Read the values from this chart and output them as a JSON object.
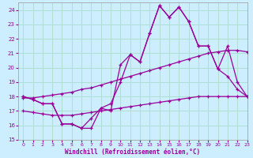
{
  "xlabel": "Windchill (Refroidissement éolien,°C)",
  "background_color": "#cceeff",
  "grid_color": "#aaddcc",
  "line_color": "#990099",
  "x_hours": [
    0,
    1,
    2,
    3,
    4,
    5,
    6,
    7,
    8,
    9,
    10,
    11,
    12,
    13,
    14,
    15,
    16,
    17,
    18,
    19,
    20,
    21,
    22,
    23
  ],
  "series_main": [
    18.0,
    17.8,
    17.5,
    17.5,
    16.1,
    16.1,
    15.8,
    15.8,
    17.2,
    17.0,
    20.2,
    20.9,
    20.4,
    22.4,
    24.3,
    23.5,
    24.2,
    23.2,
    21.5,
    21.5,
    19.9,
    19.4,
    18.5,
    18.0
  ],
  "series_line2": [
    18.0,
    17.8,
    17.5,
    17.5,
    16.1,
    16.1,
    15.8,
    16.5,
    17.2,
    17.5,
    19.0,
    20.9,
    20.4,
    22.4,
    24.3,
    23.5,
    24.2,
    23.2,
    21.5,
    21.5,
    19.9,
    21.5,
    19.0,
    18.0
  ],
  "series_avg_high": [
    17.9,
    17.9,
    18.0,
    18.1,
    18.2,
    18.3,
    18.5,
    18.6,
    18.8,
    19.0,
    19.2,
    19.4,
    19.6,
    19.8,
    20.0,
    20.2,
    20.4,
    20.6,
    20.8,
    21.0,
    21.1,
    21.2,
    21.2,
    21.1
  ],
  "series_avg_low": [
    17.0,
    16.9,
    16.8,
    16.7,
    16.7,
    16.7,
    16.8,
    16.9,
    17.0,
    17.1,
    17.2,
    17.3,
    17.4,
    17.5,
    17.6,
    17.7,
    17.8,
    17.9,
    18.0,
    18.0,
    18.0,
    18.0,
    18.0,
    18.0
  ],
  "ylim": [
    15,
    24.5
  ],
  "xlim": [
    -0.5,
    23
  ],
  "yticks": [
    15,
    16,
    17,
    18,
    19,
    20,
    21,
    22,
    23,
    24
  ],
  "xticks": [
    0,
    1,
    2,
    3,
    4,
    5,
    6,
    7,
    8,
    9,
    10,
    11,
    12,
    13,
    14,
    15,
    16,
    17,
    18,
    19,
    20,
    21,
    22,
    23
  ]
}
